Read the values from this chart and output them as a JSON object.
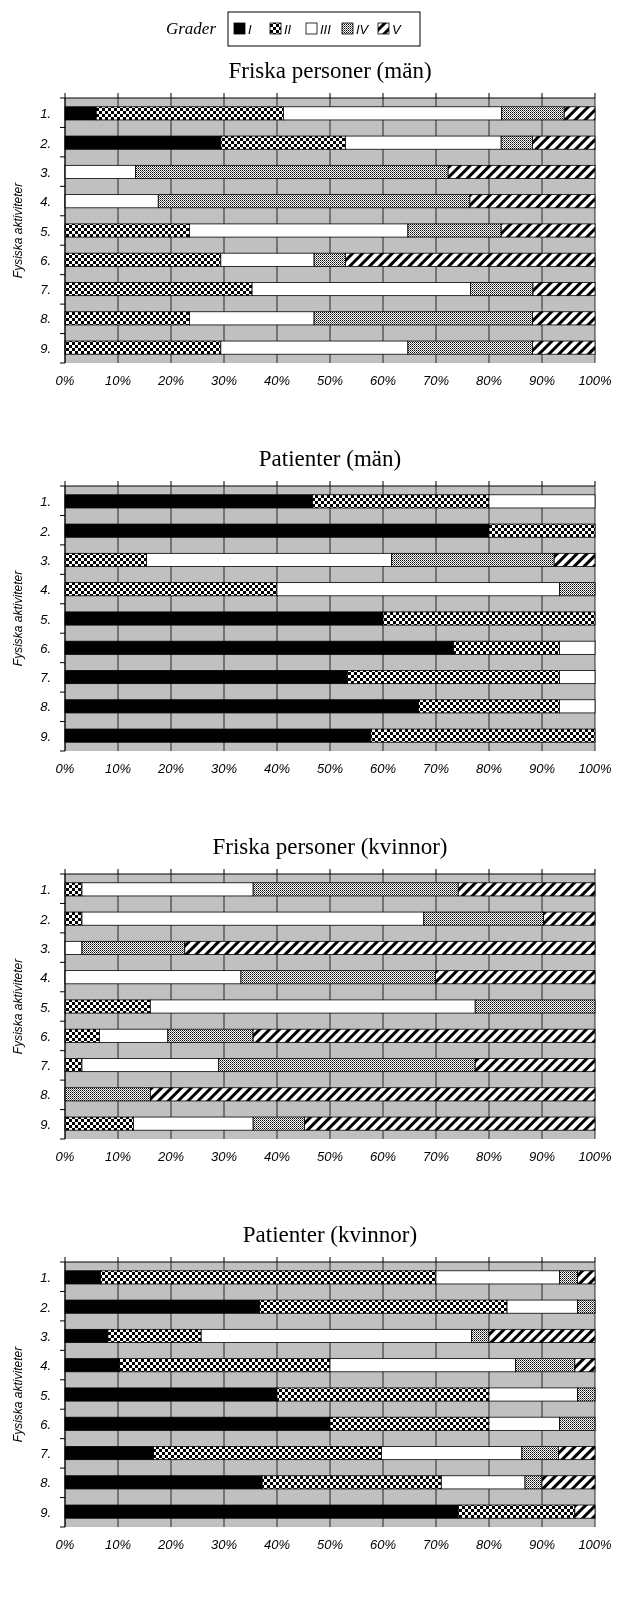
{
  "chart_data": [
    {
      "type": "bar",
      "orientation": "horizontal",
      "stacked": true,
      "title": "Friska personer (män)",
      "ylabel": "Fysiska aktiviteter",
      "legend_title": "Grader",
      "legend": "top",
      "grid": "x",
      "categories": [
        "1.",
        "2.",
        "3.",
        "4.",
        "5.",
        "6.",
        "7.",
        "8.",
        "9."
      ],
      "xlim": [
        0,
        100
      ],
      "xticks": [
        {
          "value": 0,
          "label": "0%"
        },
        {
          "value": 10,
          "label": "10%"
        },
        {
          "value": 20,
          "label": "20%"
        },
        {
          "value": 30,
          "label": "30%"
        },
        {
          "value": 40,
          "label": "40%"
        },
        {
          "value": 50,
          "label": "50%"
        },
        {
          "value": 60,
          "label": "60%"
        },
        {
          "value": 70,
          "label": "70%"
        },
        {
          "value": 80,
          "label": "80%"
        },
        {
          "value": 90,
          "label": "90%"
        },
        {
          "value": 100,
          "label": "100%"
        }
      ],
      "series": [
        {
          "name": "I",
          "color": "#000000",
          "values": [
            5.9,
            29.4,
            0,
            0,
            0,
            0,
            0,
            0,
            0
          ]
        },
        {
          "name": "II",
          "color": "#000000",
          "values": [
            35.3,
            23.5,
            0,
            0,
            23.5,
            29.4,
            35.3,
            23.5,
            29.4
          ]
        },
        {
          "name": "III",
          "color": "#ffffff",
          "values": [
            41.2,
            29.4,
            13.3,
            17.6,
            41.2,
            17.6,
            41.2,
            23.5,
            35.3
          ]
        },
        {
          "name": "IV",
          "color": "#000000",
          "values": [
            11.8,
            5.9,
            59,
            58.8,
            17.6,
            5.9,
            11.8,
            41.2,
            23.5
          ]
        },
        {
          "name": "V",
          "color": "#000000",
          "values": [
            5.8,
            11.8,
            27.7,
            23.6,
            17.7,
            47.1,
            11.7,
            11.8,
            11.8
          ]
        }
      ]
    },
    {
      "type": "bar",
      "orientation": "horizontal",
      "stacked": true,
      "title": "Patienter (män)",
      "ylabel": "Fysiska aktiviteter",
      "grid": "x",
      "categories": [
        "1.",
        "2.",
        "3.",
        "4.",
        "5.",
        "6.",
        "7.",
        "8.",
        "9."
      ],
      "xlim": [
        0,
        100
      ],
      "xticks": [
        {
          "value": 0,
          "label": "0%"
        },
        {
          "value": 10,
          "label": "10%"
        },
        {
          "value": 20,
          "label": "20%"
        },
        {
          "value": 30,
          "label": "30%"
        },
        {
          "value": 40,
          "label": "40%"
        },
        {
          "value": 50,
          "label": "50%"
        },
        {
          "value": 60,
          "label": "60%"
        },
        {
          "value": 70,
          "label": "70%"
        },
        {
          "value": 80,
          "label": "80%"
        },
        {
          "value": 90,
          "label": "90%"
        },
        {
          "value": 100,
          "label": "100%"
        }
      ],
      "series": [
        {
          "color": "#000000",
          "values": [
            46.7,
            80,
            0,
            0,
            60,
            73.3,
            53.3,
            66.7,
            57.7
          ]
        },
        {
          "color": "#000000",
          "values": [
            33.3,
            20,
            15.4,
            40,
            40,
            20,
            40,
            26.6,
            42.3
          ]
        },
        {
          "color": "#ffffff",
          "values": [
            20,
            0,
            46.2,
            53.3,
            0,
            6.7,
            6.7,
            6.7,
            0
          ]
        },
        {
          "color": "#000000",
          "values": [
            0,
            0,
            30.7,
            6.7,
            0,
            0,
            0,
            0,
            0
          ]
        },
        {
          "color": "#000000",
          "values": [
            0,
            0,
            7.7,
            0,
            0,
            0,
            0,
            0,
            0
          ]
        }
      ]
    },
    {
      "type": "bar",
      "orientation": "horizontal",
      "stacked": true,
      "title": "Friska personer (kvinnor)",
      "ylabel": "Fysiska aktiviteter",
      "grid": "x",
      "categories": [
        "1.",
        "2.",
        "3.",
        "4.",
        "5.",
        "6.",
        "7.",
        "8.",
        "9."
      ],
      "xlim": [
        0,
        100
      ],
      "xticks": [
        {
          "value": 0,
          "label": "0%"
        },
        {
          "value": 10,
          "label": "10%"
        },
        {
          "value": 20,
          "label": "20%"
        },
        {
          "value": 30,
          "label": "30%"
        },
        {
          "value": 40,
          "label": "40%"
        },
        {
          "value": 50,
          "label": "50%"
        },
        {
          "value": 60,
          "label": "60%"
        },
        {
          "value": 70,
          "label": "70%"
        },
        {
          "value": 80,
          "label": "80%"
        },
        {
          "value": 90,
          "label": "90%"
        },
        {
          "value": 100,
          "label": "100%"
        }
      ],
      "series": [
        {
          "color": "#000000",
          "values": [
            3.2,
            3.2,
            0,
            0,
            16.1,
            6.5,
            3.2,
            0,
            12.9
          ]
        },
        {
          "color": "#ffffff",
          "values": [
            32.3,
            64.5,
            3.2,
            33.2,
            61.3,
            12.9,
            25.8,
            0,
            22.6
          ]
        },
        {
          "color": "#000000",
          "values": [
            38.7,
            22.6,
            19.4,
            36.7,
            22.6,
            16.1,
            48.4,
            16.1,
            9.7
          ]
        },
        {
          "color": "#000000",
          "values": [
            25.8,
            9.7,
            77.4,
            30.1,
            0,
            64.5,
            22.6,
            83.9,
            54.8
          ]
        }
      ]
    },
    {
      "type": "bar",
      "orientation": "horizontal",
      "stacked": true,
      "title": "Patienter (kvinnor)",
      "ylabel": "Fysiska aktiviteter",
      "grid": "x",
      "categories": [
        "1.",
        "2.",
        "3.",
        "4.",
        "5.",
        "6.",
        "7.",
        "8.",
        "9."
      ],
      "xlim": [
        0,
        100
      ],
      "xticks": [
        {
          "value": 0,
          "label": "0%"
        },
        {
          "value": 10,
          "label": "10%"
        },
        {
          "value": 20,
          "label": "20%"
        },
        {
          "value": 30,
          "label": "30%"
        },
        {
          "value": 40,
          "label": "40%"
        },
        {
          "value": 50,
          "label": "50%"
        },
        {
          "value": 60,
          "label": "60%"
        },
        {
          "value": 70,
          "label": "70%"
        },
        {
          "value": 80,
          "label": "80%"
        },
        {
          "value": 90,
          "label": "90%"
        },
        {
          "value": 100,
          "label": "100%"
        }
      ],
      "series": [
        {
          "color": "#000000",
          "values": [
            6.7,
            36.7,
            8.1,
            10.3,
            40,
            50,
            16.7,
            37.2,
            74.2
          ]
        },
        {
          "color": "#000000",
          "values": [
            63.3,
            46.7,
            17.6,
            39.7,
            40,
            30,
            43,
            33.8,
            22
          ]
        },
        {
          "color": "#ffffff",
          "values": [
            23.3,
            13.3,
            51,
            35,
            16.7,
            13.3,
            26.5,
            15.8,
            0
          ]
        },
        {
          "color": "#000000",
          "values": [
            3.4,
            3.3,
            3.3,
            11.2,
            3.3,
            6.7,
            6.9,
            3.2,
            0
          ]
        },
        {
          "color": "#000000",
          "values": [
            3.3,
            0,
            20,
            3.8,
            0,
            0,
            6.9,
            10,
            3.8
          ]
        }
      ]
    }
  ]
}
